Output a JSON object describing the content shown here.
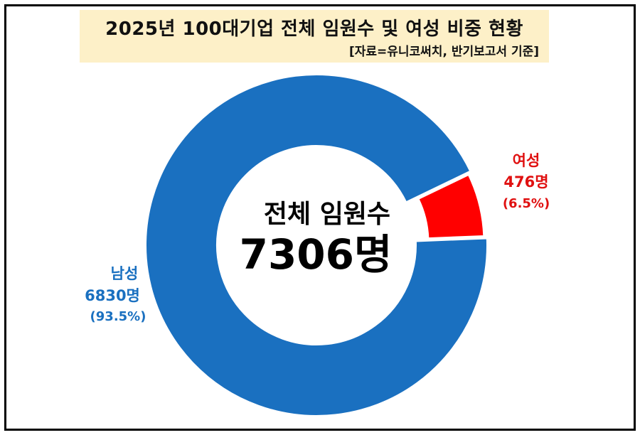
{
  "header": {
    "title": "2025년 100대기업 전체 임원수 및 여성 비중 현황",
    "subtitle": "[자료=유니코써치, 반기보고서 기준]"
  },
  "center": {
    "label": "전체 임원수",
    "total": "7306명"
  },
  "colors": {
    "male": "#1a70c0",
    "female": "#ff0000",
    "male_text": "#1a70c0",
    "female_text": "#e01010",
    "title_bg": "#fdf0c8"
  },
  "chart_data": {
    "type": "pie",
    "donut": true,
    "total": 7306,
    "slices": [
      {
        "name": "남성",
        "value": 6830,
        "percent": 93.5,
        "count_label": "6830명",
        "percent_label": "(93.5%)"
      },
      {
        "name": "여성",
        "value": 476,
        "percent": 6.5,
        "count_label": "476명",
        "percent_label": "(6.5%)",
        "exploded": true
      }
    ]
  }
}
